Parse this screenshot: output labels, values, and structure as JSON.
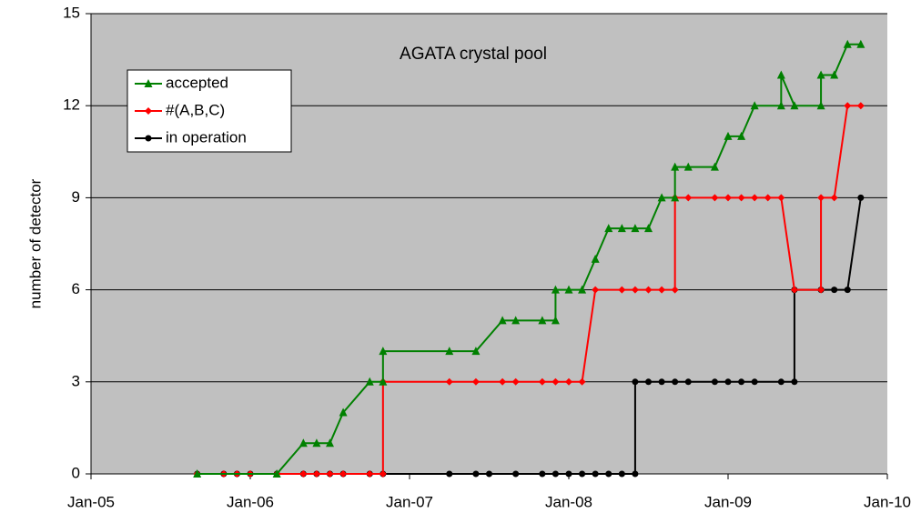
{
  "chart_data": {
    "type": "line",
    "title": "AGATA crystal pool",
    "ylabel": "number of detector",
    "xlim": [
      "2005-01",
      "2010-01"
    ],
    "xticks": [
      {
        "value": "2005-01",
        "label": "Jan-05"
      },
      {
        "value": "2006-01",
        "label": "Jan-06"
      },
      {
        "value": "2007-01",
        "label": "Jan-07"
      },
      {
        "value": "2008-01",
        "label": "Jan-08"
      },
      {
        "value": "2009-01",
        "label": "Jan-09"
      },
      {
        "value": "2010-01",
        "label": "Jan-10"
      }
    ],
    "ylim": [
      0,
      15
    ],
    "yticks": [
      0,
      3,
      6,
      9,
      12,
      15
    ],
    "grid": true,
    "legend": "upper left",
    "series": [
      {
        "name": "accepted",
        "color": "#008000",
        "marker": "triangle",
        "x": [
          "2005-09",
          "2006-03",
          "2006-05",
          "2006-06",
          "2006-07",
          "2006-08",
          "2006-10",
          "2006-11",
          "2006-11",
          "2007-04",
          "2007-06",
          "2007-08",
          "2007-09",
          "2007-11",
          "2007-12",
          "2007-12",
          "2008-01",
          "2008-02",
          "2008-03",
          "2008-04",
          "2008-05",
          "2008-06",
          "2008-07",
          "2008-08",
          "2008-09",
          "2008-09",
          "2008-10",
          "2008-12",
          "2009-01",
          "2009-02",
          "2009-03",
          "2009-05",
          "2009-05",
          "2009-06",
          "2009-08",
          "2009-08",
          "2009-09",
          "2009-10",
          "2009-11"
        ],
        "values": [
          0,
          0,
          1,
          1,
          1,
          2,
          3,
          3,
          4,
          4,
          4,
          5,
          5,
          5,
          5,
          6,
          6,
          6,
          7,
          8,
          8,
          8,
          8,
          9,
          9,
          10,
          10,
          10,
          11,
          11,
          12,
          12,
          13,
          12,
          12,
          13,
          13,
          14,
          14
        ]
      },
      {
        "name": "#(A,B,C)",
        "color": "#ff0000",
        "marker": "diamond",
        "x": [
          "2005-09",
          "2005-11",
          "2005-12",
          "2006-01",
          "2006-03",
          "2006-05",
          "2006-06",
          "2006-07",
          "2006-08",
          "2006-10",
          "2006-11",
          "2006-11",
          "2007-04",
          "2007-06",
          "2007-08",
          "2007-09",
          "2007-11",
          "2007-12",
          "2008-01",
          "2008-02",
          "2008-03",
          "2008-05",
          "2008-06",
          "2008-07",
          "2008-08",
          "2008-09",
          "2008-09",
          "2008-10",
          "2008-12",
          "2009-01",
          "2009-02",
          "2009-03",
          "2009-04",
          "2009-05",
          "2009-06",
          "2009-08",
          "2009-08",
          "2009-09",
          "2009-10",
          "2009-11"
        ],
        "values": [
          0,
          0,
          0,
          0,
          0,
          0,
          0,
          0,
          0,
          0,
          0,
          3,
          3,
          3,
          3,
          3,
          3,
          3,
          3,
          3,
          6,
          6,
          6,
          6,
          6,
          6,
          9,
          9,
          9,
          9,
          9,
          9,
          9,
          9,
          6,
          6,
          9,
          9,
          12,
          12
        ]
      },
      {
        "name": "in operation",
        "color": "#000000",
        "marker": "circle",
        "x": [
          "2005-09",
          "2005-11",
          "2005-12",
          "2006-01",
          "2006-03",
          "2006-05",
          "2006-06",
          "2006-07",
          "2006-08",
          "2006-10",
          "2006-11",
          "2007-04",
          "2007-06",
          "2007-07",
          "2007-09",
          "2007-11",
          "2007-12",
          "2008-01",
          "2008-02",
          "2008-03",
          "2008-04",
          "2008-05",
          "2008-06",
          "2008-06",
          "2008-07",
          "2008-08",
          "2008-09",
          "2008-10",
          "2008-12",
          "2009-01",
          "2009-02",
          "2009-03",
          "2009-05",
          "2009-06",
          "2009-06",
          "2009-08",
          "2009-09",
          "2009-10",
          "2009-11"
        ],
        "values": [
          0,
          0,
          0,
          0,
          0,
          0,
          0,
          0,
          0,
          0,
          0,
          0,
          0,
          0,
          0,
          0,
          0,
          0,
          0,
          0,
          0,
          0,
          0,
          3,
          3,
          3,
          3,
          3,
          3,
          3,
          3,
          3,
          3,
          3,
          6,
          6,
          6,
          6,
          9
        ]
      }
    ]
  }
}
